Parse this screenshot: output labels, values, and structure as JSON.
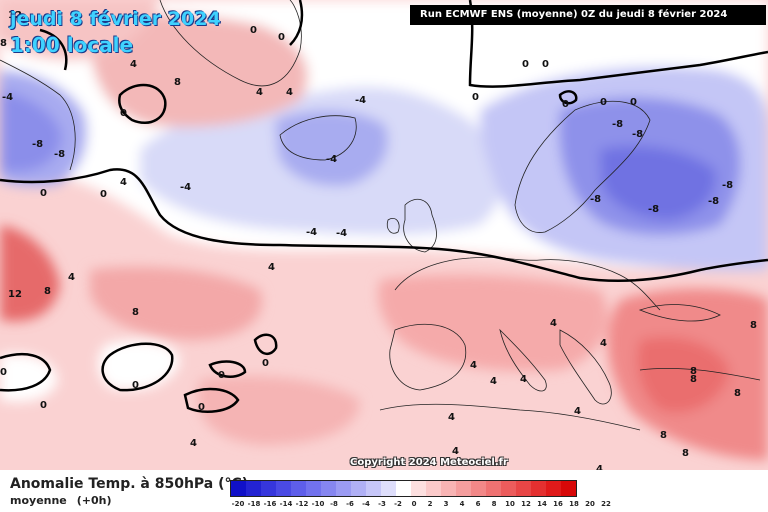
{
  "header": {
    "date": "jeudi 8 février 2024",
    "time": "1:00 locale",
    "run": "Run ECMWF ENS (moyenne) 0Z du jeudi 8 février 2024"
  },
  "copyright": "Copyright 2024 Meteociel.fr",
  "legend": {
    "title": "Anomalie Temp. à 850hPa (°C)",
    "subtitle": "moyenne",
    "lead": "(+0h)",
    "ticks": [
      "-20",
      "-18",
      "-16",
      "-14",
      "-12",
      "-10",
      "-8",
      "-6",
      "-4",
      "-3",
      "-2",
      "0",
      "2",
      "3",
      "4",
      "6",
      "8",
      "10",
      "12",
      "14",
      "16",
      "18",
      "20",
      "22"
    ],
    "colors": [
      "#1010c8",
      "#2323d2",
      "#3636dc",
      "#4a4ae4",
      "#5e5eea",
      "#7272ee",
      "#8686f0",
      "#9b9bf3",
      "#b0b0f5",
      "#c6c6f8",
      "#dedefb",
      "#ffffff",
      "#fde0e0",
      "#fbcaca",
      "#f8b4b4",
      "#f59e9e",
      "#f28888",
      "#ef7272",
      "#ec5c5c",
      "#e84646",
      "#e43030",
      "#e01a1a",
      "#d80808"
    ]
  },
  "map_labels": [
    {
      "id": "c12",
      "text": "12"
    },
    {
      "id": "c8a",
      "text": "8"
    },
    {
      "id": "c4a",
      "text": "4"
    },
    {
      "id": "c0a",
      "text": "0"
    },
    {
      "id": "c0b",
      "text": "0"
    },
    {
      "id": "c8b",
      "text": "8"
    },
    {
      "id": "c4b",
      "text": "4"
    },
    {
      "id": "c4c",
      "text": "4"
    },
    {
      "id": "c0c",
      "text": "0"
    },
    {
      "id": "c0d",
      "text": "0"
    },
    {
      "id": "cm4a",
      "text": "-4"
    },
    {
      "id": "cm8a",
      "text": "-8"
    },
    {
      "id": "cm8b",
      "text": "-8"
    },
    {
      "id": "c0e",
      "text": "0"
    },
    {
      "id": "c0f",
      "text": "0"
    },
    {
      "id": "c4d",
      "text": "4"
    },
    {
      "id": "c0g",
      "text": "0"
    },
    {
      "id": "cm4b",
      "text": "-4"
    },
    {
      "id": "cm4c",
      "text": "-4"
    },
    {
      "id": "cm4d",
      "text": "-4"
    },
    {
      "id": "cm4e",
      "text": "-4"
    },
    {
      "id": "c0h",
      "text": "0"
    },
    {
      "id": "c0i",
      "text": "0"
    },
    {
      "id": "c0j",
      "text": "0"
    },
    {
      "id": "c0k",
      "text": "0"
    },
    {
      "id": "cm4f",
      "text": "-4"
    },
    {
      "id": "cm8c",
      "text": "-8"
    },
    {
      "id": "cm8d",
      "text": "-8"
    },
    {
      "id": "cm8e",
      "text": "-8"
    },
    {
      "id": "cm8f",
      "text": "-8"
    },
    {
      "id": "cm8g",
      "text": "-8"
    },
    {
      "id": "cm8h",
      "text": "-8"
    },
    {
      "id": "c4e",
      "text": "4"
    },
    {
      "id": "c12b",
      "text": "12"
    },
    {
      "id": "c8c",
      "text": "8"
    },
    {
      "id": "c4f",
      "text": "4"
    },
    {
      "id": "c8d",
      "text": "8"
    },
    {
      "id": "c0l",
      "text": "0"
    },
    {
      "id": "c0m",
      "text": "0"
    },
    {
      "id": "c0n",
      "text": "0"
    },
    {
      "id": "c0o",
      "text": "0"
    },
    {
      "id": "c0p",
      "text": "0"
    },
    {
      "id": "c0q",
      "text": "0"
    },
    {
      "id": "c4g",
      "text": "4"
    },
    {
      "id": "c4h",
      "text": "4"
    },
    {
      "id": "c4i",
      "text": "4"
    },
    {
      "id": "c4j",
      "text": "4"
    },
    {
      "id": "c4k",
      "text": "4"
    },
    {
      "id": "c4l",
      "text": "4"
    },
    {
      "id": "c4m",
      "text": "4"
    },
    {
      "id": "c8e",
      "text": "8"
    },
    {
      "id": "c8f",
      "text": "8"
    },
    {
      "id": "c8g",
      "text": "8"
    },
    {
      "id": "c8h",
      "text": "8"
    },
    {
      "id": "c8i",
      "text": "8"
    },
    {
      "id": "c8j",
      "text": "8"
    },
    {
      "id": "c4n",
      "text": "4"
    },
    {
      "id": "c4o",
      "text": "4"
    },
    {
      "id": "c4p",
      "text": "4"
    }
  ]
}
